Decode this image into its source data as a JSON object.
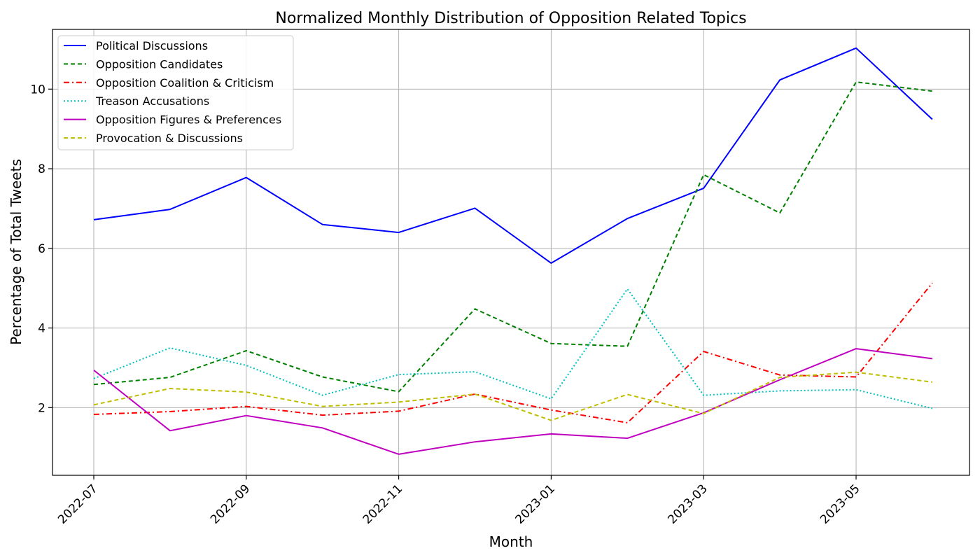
{
  "chart_data": {
    "type": "line",
    "title": "Normalized Monthly Distribution of Opposition Related Topics",
    "xlabel": "Month",
    "ylabel": "Percentage of Total Tweets",
    "x": [
      "2022-07",
      "2022-08",
      "2022-09",
      "2022-10",
      "2022-11",
      "2022-12",
      "2023-01",
      "2023-02",
      "2023-03",
      "2023-04",
      "2023-05",
      "2023-06"
    ],
    "x_tick_labels": [
      "2022-07",
      "2022-09",
      "2022-11",
      "2023-01",
      "2023-03",
      "2023-05"
    ],
    "y_ticks": [
      2,
      4,
      6,
      8,
      10
    ],
    "ylim": [
      0.3,
      11.5
    ],
    "grid": true,
    "legend_position": "upper-left",
    "series": [
      {
        "name": "Political Discussions",
        "color": "#0000ff",
        "style": "solid",
        "values": [
          6.72,
          6.98,
          7.78,
          6.6,
          6.4,
          7.01,
          5.63,
          6.75,
          7.51,
          10.23,
          11.03,
          9.24
        ]
      },
      {
        "name": "Opposition Candidates",
        "color": "#008000",
        "style": "dashed",
        "values": [
          2.58,
          2.76,
          3.43,
          2.77,
          2.4,
          4.48,
          3.61,
          3.54,
          7.85,
          6.89,
          10.18,
          9.95
        ]
      },
      {
        "name": "Opposition Coalition & Criticism",
        "color": "#ff0000",
        "style": "dashdot",
        "values": [
          1.83,
          1.9,
          2.03,
          1.81,
          1.91,
          2.34,
          1.94,
          1.62,
          3.41,
          2.82,
          2.77,
          5.13
        ]
      },
      {
        "name": "Treason Accusations",
        "color": "#00bfbf",
        "style": "dotted",
        "values": [
          2.73,
          3.5,
          3.06,
          2.31,
          2.83,
          2.9,
          2.22,
          4.98,
          2.31,
          2.42,
          2.45,
          1.98
        ]
      },
      {
        "name": "Opposition Figures & Preferences",
        "color": "#bf00bf",
        "style": "solid",
        "values": [
          2.94,
          1.42,
          1.8,
          1.49,
          0.83,
          1.14,
          1.34,
          1.23,
          1.87,
          2.7,
          3.48,
          3.23
        ]
      },
      {
        "name": "Provocation & Discussions",
        "color": "#bfbf00",
        "style": "dashed",
        "values": [
          2.07,
          2.48,
          2.39,
          2.03,
          2.14,
          2.34,
          1.68,
          2.33,
          1.85,
          2.76,
          2.89,
          2.64
        ]
      }
    ]
  }
}
